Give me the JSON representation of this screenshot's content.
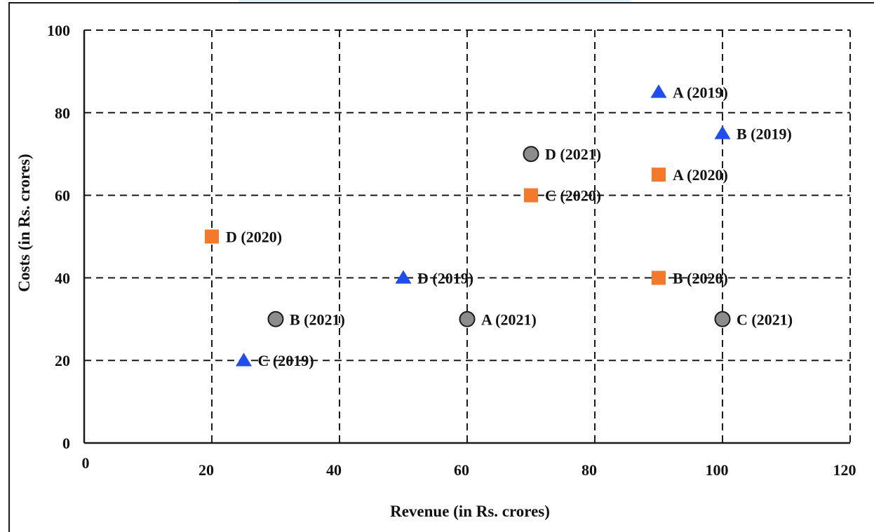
{
  "chart_data": {
    "type": "scatter",
    "title": "",
    "xlabel": "Revenue (in Rs. crores)",
    "ylabel": "Costs (in Rs. crores)",
    "xlim": [
      0,
      120
    ],
    "ylim": [
      0,
      100
    ],
    "xticks": [
      0,
      20,
      40,
      60,
      80,
      100,
      120
    ],
    "yticks": [
      0,
      20,
      40,
      60,
      80,
      100
    ],
    "grid": "dashed",
    "legend": "none",
    "series": [
      {
        "name": "2019",
        "marker": "triangle",
        "color": "#1f4ef0",
        "points": [
          {
            "label": "A (2019)",
            "x": 90,
            "y": 85
          },
          {
            "label": "B (2019)",
            "x": 100,
            "y": 75
          },
          {
            "label": "C (2019)",
            "x": 25,
            "y": 20
          },
          {
            "label": "D (2019)",
            "x": 50,
            "y": 40
          }
        ]
      },
      {
        "name": "2020",
        "marker": "square",
        "color": "#f5792a",
        "points": [
          {
            "label": "A (2020)",
            "x": 90,
            "y": 65
          },
          {
            "label": "B (2020)",
            "x": 90,
            "y": 40
          },
          {
            "label": "C (2020)",
            "x": 70,
            "y": 60
          },
          {
            "label": "D (2020)",
            "x": 20,
            "y": 50
          }
        ]
      },
      {
        "name": "2021",
        "marker": "circle",
        "color": "#8c8c8c",
        "points": [
          {
            "label": "A (2021)",
            "x": 60,
            "y": 30
          },
          {
            "label": "B (2021)",
            "x": 30,
            "y": 30
          },
          {
            "label": "C (2021)",
            "x": 100,
            "y": 30
          },
          {
            "label": "D (2021)",
            "x": 70,
            "y": 70
          }
        ]
      }
    ]
  }
}
